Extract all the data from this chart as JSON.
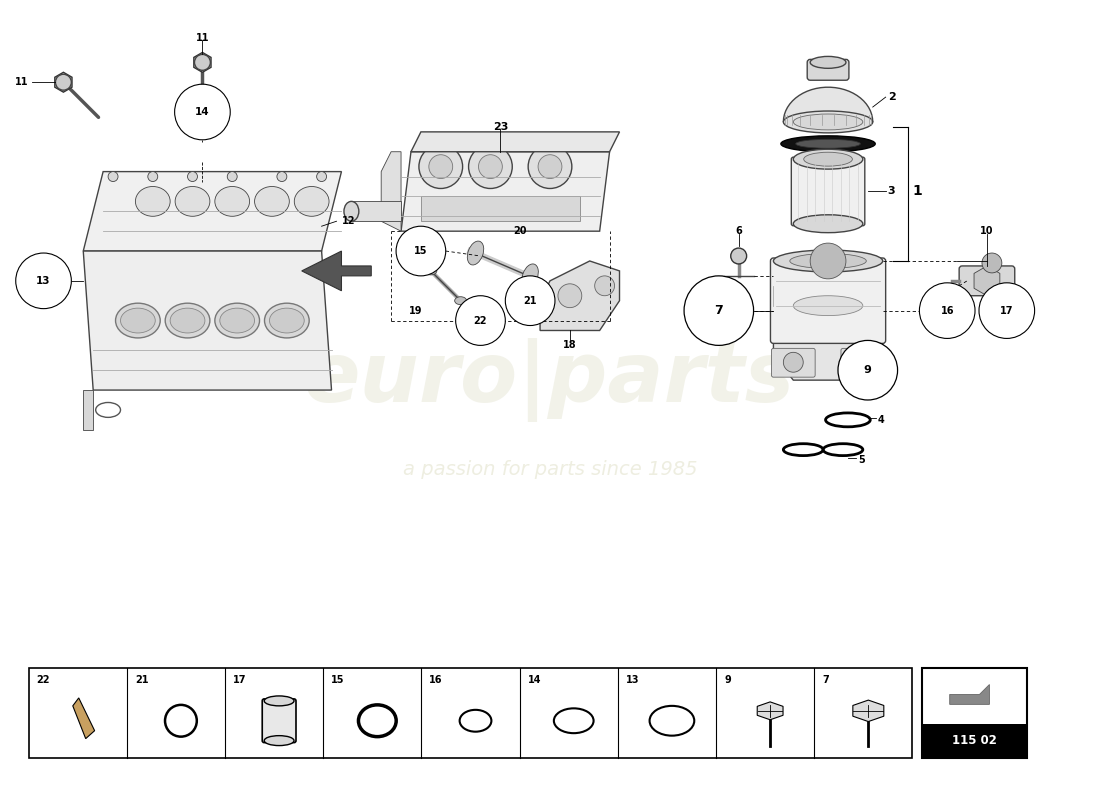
{
  "bg_color": "#ffffff",
  "watermark_text1": "euro|parts",
  "watermark_text2": "a passion for parts since 1985",
  "ref_code": "115 02",
  "fig_width": 11.0,
  "fig_height": 8.0,
  "lw_thin": 0.6,
  "lw_med": 1.0,
  "lw_thick": 1.5,
  "part_color": "#e8e8e8",
  "outline_color": "#444444",
  "dark_color": "#222222",
  "bottom_cells": [
    "22",
    "21",
    "17",
    "15",
    "16",
    "14",
    "13",
    "9",
    "7"
  ]
}
